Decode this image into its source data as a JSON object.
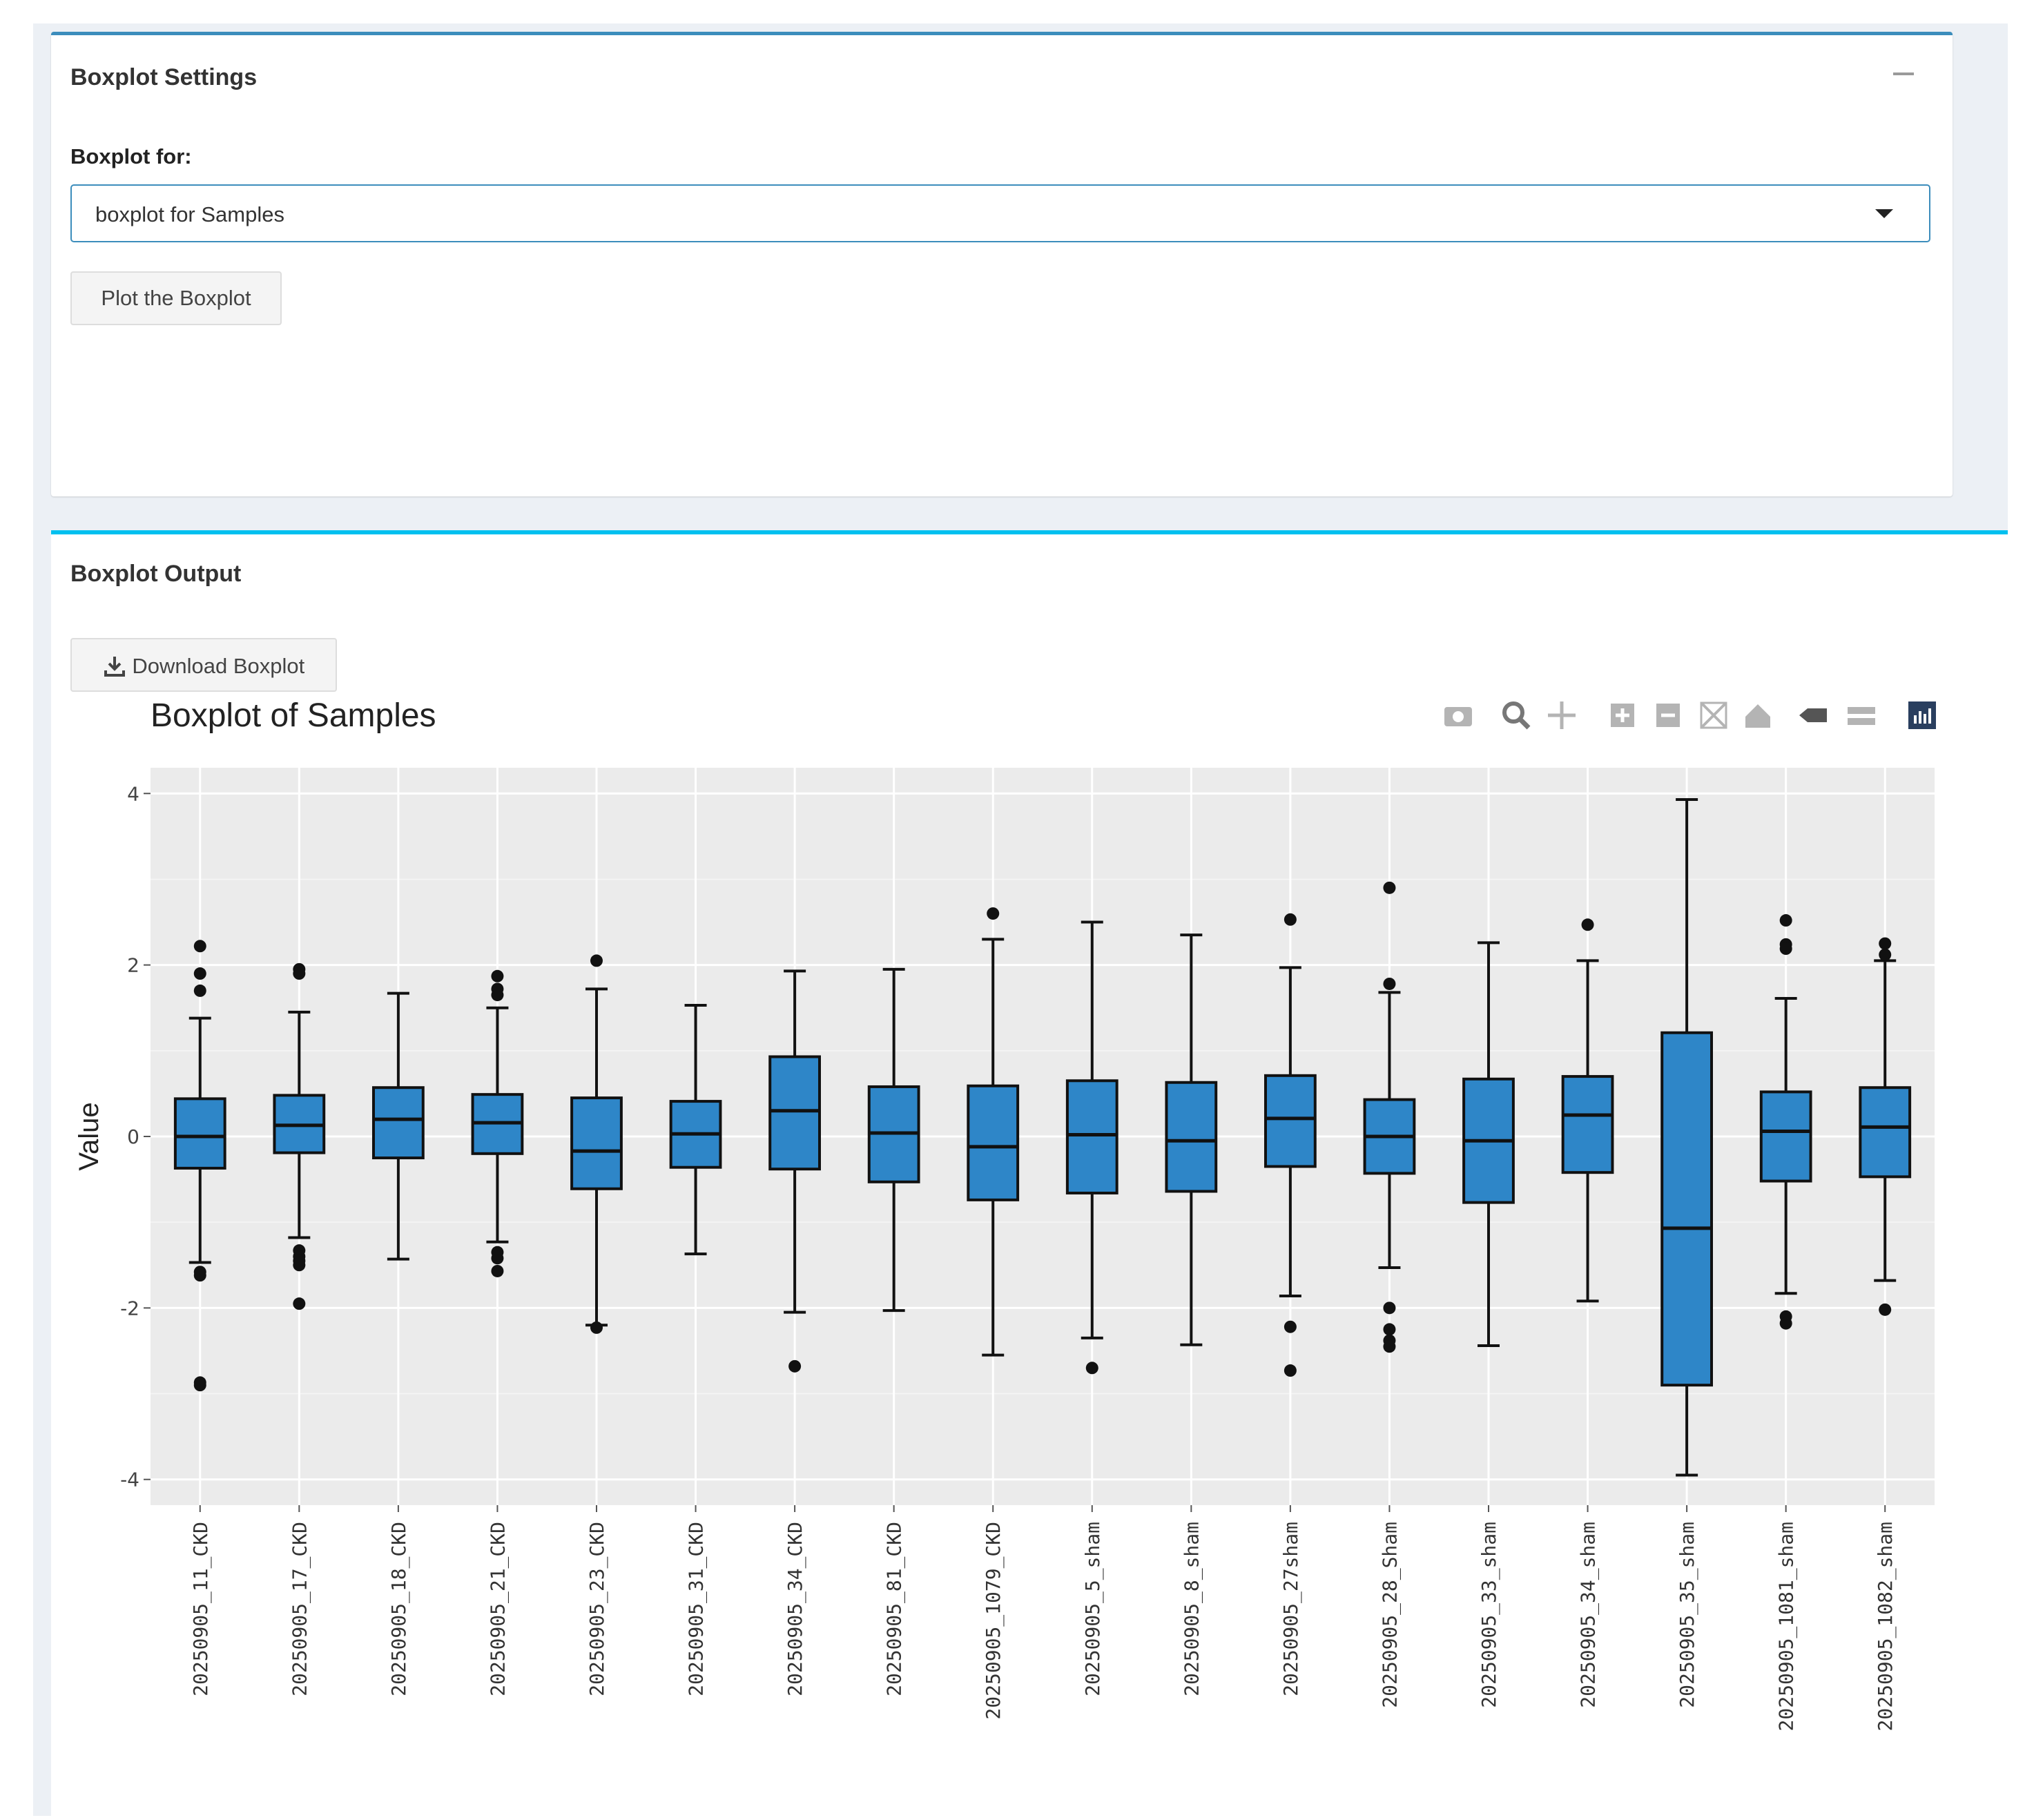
{
  "settings": {
    "title": "Boxplot Settings",
    "field_label": "Boxplot for:",
    "select_value": "boxplot for Samples",
    "button_label": "Plot the Boxplot"
  },
  "output": {
    "title": "Boxplot Output",
    "download_label": "Download Boxplot"
  },
  "modebar": [
    "camera-icon",
    "zoom-icon",
    "pan-icon",
    "zoom-in-icon",
    "zoom-out-icon",
    "autoscale-icon",
    "reset-axes-icon",
    "hover-closest-icon",
    "hover-compare-icon",
    "plotly-logo-icon"
  ],
  "chart_data": {
    "type": "boxplot",
    "title": "Boxplot of Samples",
    "xlabel": "",
    "ylabel": "Value",
    "ylim": [
      -4.3,
      4.3
    ],
    "yticks": [
      -4,
      -2,
      0,
      2,
      4
    ],
    "grid": true,
    "fill_color": "#2e86c8",
    "panel_color": "#ebebeb",
    "categories": [
      "20250905_11_CKD",
      "20250905_17_CKD",
      "20250905_18_CKD",
      "20250905_21_CKD",
      "20250905_23_CKD",
      "20250905_31_CKD",
      "20250905_34_CKD",
      "20250905_81_CKD",
      "20250905_1079_CKD",
      "20250905_5_sham",
      "20250905_8_sham",
      "20250905_27sham",
      "20250905_28_Sham",
      "20250905_33_sham",
      "20250905_34_sham",
      "20250905_35_sham",
      "20250905_1081_sham",
      "20250905_1082_sham"
    ],
    "boxes": [
      {
        "low": -1.47,
        "q1": -0.37,
        "median": 0.0,
        "q3": 0.44,
        "high": 1.38,
        "outliers": [
          2.22,
          1.9,
          1.7,
          -1.58,
          -1.62,
          -2.87,
          -2.9
        ]
      },
      {
        "low": -1.18,
        "q1": -0.19,
        "median": 0.13,
        "q3": 0.48,
        "high": 1.45,
        "outliers": [
          1.95,
          1.9,
          -1.33,
          -1.4,
          -1.45,
          -1.5,
          -1.95
        ]
      },
      {
        "low": -1.43,
        "q1": -0.25,
        "median": 0.2,
        "q3": 0.57,
        "high": 1.67,
        "outliers": []
      },
      {
        "low": -1.23,
        "q1": -0.2,
        "median": 0.16,
        "q3": 0.49,
        "high": 1.5,
        "outliers": [
          1.87,
          1.72,
          1.65,
          -1.35,
          -1.42,
          -1.57
        ]
      },
      {
        "low": -2.2,
        "q1": -0.61,
        "median": -0.17,
        "q3": 0.45,
        "high": 1.72,
        "outliers": [
          2.05,
          -2.23
        ]
      },
      {
        "low": -1.37,
        "q1": -0.36,
        "median": 0.03,
        "q3": 0.41,
        "high": 1.53,
        "outliers": []
      },
      {
        "low": -2.05,
        "q1": -0.38,
        "median": 0.3,
        "q3": 0.93,
        "high": 1.93,
        "outliers": [
          -2.68
        ]
      },
      {
        "low": -2.03,
        "q1": -0.53,
        "median": 0.04,
        "q3": 0.58,
        "high": 1.95,
        "outliers": []
      },
      {
        "low": -2.55,
        "q1": -0.74,
        "median": -0.12,
        "q3": 0.59,
        "high": 2.3,
        "outliers": [
          2.6
        ]
      },
      {
        "low": -2.35,
        "q1": -0.66,
        "median": 0.02,
        "q3": 0.65,
        "high": 2.5,
        "outliers": [
          -2.7
        ]
      },
      {
        "low": -2.43,
        "q1": -0.64,
        "median": -0.05,
        "q3": 0.63,
        "high": 2.35,
        "outliers": []
      },
      {
        "low": -1.86,
        "q1": -0.35,
        "median": 0.21,
        "q3": 0.71,
        "high": 1.97,
        "outliers": [
          2.53,
          -2.22,
          -2.73
        ]
      },
      {
        "low": -1.53,
        "q1": -0.43,
        "median": 0.0,
        "q3": 0.43,
        "high": 1.68,
        "outliers": [
          2.9,
          1.78,
          -2.0,
          -2.25,
          -2.38,
          -2.45
        ]
      },
      {
        "low": -2.44,
        "q1": -0.77,
        "median": -0.05,
        "q3": 0.67,
        "high": 2.26,
        "outliers": []
      },
      {
        "low": -1.92,
        "q1": -0.42,
        "median": 0.25,
        "q3": 0.7,
        "high": 2.05,
        "outliers": [
          2.47
        ]
      },
      {
        "low": -3.95,
        "q1": -2.9,
        "median": -1.07,
        "q3": 1.21,
        "high": 3.93,
        "outliers": []
      },
      {
        "low": -1.83,
        "q1": -0.52,
        "median": 0.06,
        "q3": 0.52,
        "high": 1.61,
        "outliers": [
          2.52,
          2.24,
          2.19,
          -2.1,
          -2.18
        ]
      },
      {
        "low": -1.68,
        "q1": -0.47,
        "median": 0.11,
        "q3": 0.57,
        "high": 2.05,
        "outliers": [
          2.25,
          2.12,
          -2.02
        ]
      }
    ]
  }
}
